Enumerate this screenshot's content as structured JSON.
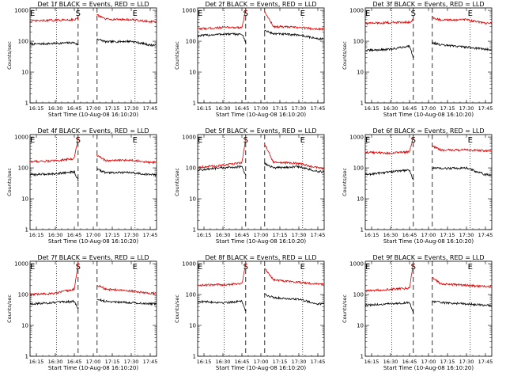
{
  "figure": {
    "background": "#ffffff",
    "event_color": "#000000",
    "lld_color": "#dd0000",
    "ylabel": "Counts/sec",
    "xlabel": "Start Time (10-Aug-08 16:10:20)",
    "x_ticks": [
      "16:15",
      "16:30",
      "16:45",
      "17:00",
      "17:15",
      "17:30",
      "17:45"
    ],
    "y_ticks": [
      "1",
      "10",
      "100",
      "1000"
    ],
    "markers": [
      "E",
      "S",
      "E"
    ]
  },
  "chart_data": [
    {
      "type": "line",
      "title": "Det 1f BLACK = Events, RED = LLD",
      "xlabel": "Start Time (10-Aug-08 16:10:20)",
      "ylabel": "Counts/sec",
      "y_scale": "log",
      "ylim": [
        1,
        1200
      ],
      "xlim": [
        "16:10",
        "17:50"
      ],
      "grid": false,
      "series": [
        {
          "name": "Events",
          "color": "#000000",
          "values": [
            [
              "16:10",
              80
            ],
            [
              "16:30",
              85
            ],
            [
              "16:45",
              90
            ],
            [
              "16:48",
              75
            ],
            [
              "17:03",
              120
            ],
            [
              "17:10",
              95
            ],
            [
              "17:30",
              100
            ],
            [
              "17:45",
              75
            ]
          ]
        },
        {
          "name": "LLD",
          "color": "#dd0000",
          "values": [
            [
              "16:10",
              450
            ],
            [
              "16:30",
              480
            ],
            [
              "16:45",
              500
            ],
            [
              "16:48",
              550
            ],
            [
              "17:03",
              700
            ],
            [
              "17:10",
              520
            ],
            [
              "17:30",
              500
            ],
            [
              "17:45",
              430
            ]
          ]
        }
      ]
    },
    {
      "type": "line",
      "title": "Det 2f BLACK = Events, RED = LLD",
      "xlabel": "Start Time (10-Aug-08 16:10:20)",
      "ylabel": "Counts/sec",
      "y_scale": "log",
      "ylim": [
        1,
        1200
      ],
      "xlim": [
        "16:10",
        "17:50"
      ],
      "grid": false,
      "series": [
        {
          "name": "Events",
          "color": "#000000",
          "values": [
            [
              "16:10",
              150
            ],
            [
              "16:30",
              170
            ],
            [
              "16:45",
              170
            ],
            [
              "16:48",
              90
            ],
            [
              "17:03",
              220
            ],
            [
              "17:10",
              175
            ],
            [
              "17:30",
              160
            ],
            [
              "17:45",
              120
            ]
          ]
        },
        {
          "name": "LLD",
          "color": "#dd0000",
          "values": [
            [
              "16:10",
              250
            ],
            [
              "16:30",
              280
            ],
            [
              "16:45",
              280
            ],
            [
              "16:48",
              1000
            ],
            [
              "17:03",
              900
            ],
            [
              "17:10",
              300
            ],
            [
              "17:30",
              280
            ],
            [
              "17:45",
              250
            ]
          ]
        }
      ]
    },
    {
      "type": "line",
      "title": "Det 3f BLACK = Events, RED = LLD",
      "xlabel": "Start Time (10-Aug-08 16:10:20)",
      "ylabel": "Counts/sec",
      "y_scale": "log",
      "ylim": [
        1,
        1200
      ],
      "xlim": [
        "16:10",
        "17:50"
      ],
      "grid": false,
      "series": [
        {
          "name": "Events",
          "color": "#000000",
          "values": [
            [
              "16:10",
              50
            ],
            [
              "16:30",
              55
            ],
            [
              "16:45",
              70
            ],
            [
              "16:48",
              30
            ],
            [
              "17:03",
              90
            ],
            [
              "17:10",
              75
            ],
            [
              "17:30",
              65
            ],
            [
              "17:45",
              55
            ]
          ]
        },
        {
          "name": "LLD",
          "color": "#dd0000",
          "values": [
            [
              "16:10",
              380
            ],
            [
              "16:30",
              400
            ],
            [
              "16:45",
              420
            ],
            [
              "16:48",
              500
            ],
            [
              "17:03",
              600
            ],
            [
              "17:10",
              480
            ],
            [
              "17:30",
              500
            ],
            [
              "17:45",
              380
            ]
          ]
        }
      ]
    },
    {
      "type": "line",
      "title": "Det 4f BLACK = Events, RED = LLD",
      "xlabel": "Start Time (10-Aug-08 16:10:20)",
      "ylabel": "Counts/sec",
      "y_scale": "log",
      "ylim": [
        1,
        1200
      ],
      "xlim": [
        "16:10",
        "17:50"
      ],
      "grid": false,
      "series": [
        {
          "name": "Events",
          "color": "#000000",
          "values": [
            [
              "16:10",
              60
            ],
            [
              "16:30",
              65
            ],
            [
              "16:45",
              75
            ],
            [
              "16:48",
              40
            ],
            [
              "17:03",
              90
            ],
            [
              "17:10",
              70
            ],
            [
              "17:30",
              70
            ],
            [
              "17:45",
              60
            ]
          ]
        },
        {
          "name": "LLD",
          "color": "#dd0000",
          "values": [
            [
              "16:10",
              160
            ],
            [
              "16:30",
              170
            ],
            [
              "16:45",
              200
            ],
            [
              "16:48",
              1000
            ],
            [
              "17:03",
              260
            ],
            [
              "17:10",
              170
            ],
            [
              "17:30",
              180
            ],
            [
              "17:45",
              150
            ]
          ]
        }
      ]
    },
    {
      "type": "line",
      "title": "Det 5f BLACK = Events, RED = LLD",
      "xlabel": "Start Time (10-Aug-08 16:10:20)",
      "ylabel": "Counts/sec",
      "y_scale": "log",
      "ylim": [
        1,
        1200
      ],
      "xlim": [
        "16:10",
        "17:50"
      ],
      "grid": false,
      "series": [
        {
          "name": "Events",
          "color": "#000000",
          "values": [
            [
              "16:10",
              85
            ],
            [
              "16:30",
              100
            ],
            [
              "16:45",
              110
            ],
            [
              "16:48",
              55
            ],
            [
              "17:03",
              140
            ],
            [
              "17:10",
              100
            ],
            [
              "17:30",
              110
            ],
            [
              "17:45",
              75
            ]
          ]
        },
        {
          "name": "LLD",
          "color": "#dd0000",
          "values": [
            [
              "16:10",
              105
            ],
            [
              "16:30",
              120
            ],
            [
              "16:45",
              150
            ],
            [
              "16:48",
              900
            ],
            [
              "17:03",
              600
            ],
            [
              "17:10",
              150
            ],
            [
              "17:30",
              140
            ],
            [
              "17:45",
              100
            ]
          ]
        }
      ]
    },
    {
      "type": "line",
      "title": "Det 6f BLACK = Events, RED = LLD",
      "xlabel": "Start Time (10-Aug-08 16:10:20)",
      "ylabel": "Counts/sec",
      "y_scale": "log",
      "ylim": [
        1,
        1200
      ],
      "xlim": [
        "16:10",
        "17:50"
      ],
      "grid": false,
      "series": [
        {
          "name": "Events",
          "color": "#000000",
          "values": [
            [
              "16:10",
              60
            ],
            [
              "16:30",
              75
            ],
            [
              "16:45",
              85
            ],
            [
              "16:48",
              40
            ],
            [
              "17:03",
              100
            ],
            [
              "17:10",
              95
            ],
            [
              "17:30",
              100
            ],
            [
              "17:45",
              60
            ]
          ]
        },
        {
          "name": "LLD",
          "color": "#dd0000",
          "values": [
            [
              "16:10",
              320
            ],
            [
              "16:30",
              300
            ],
            [
              "16:45",
              330
            ],
            [
              "16:48",
              1000
            ],
            [
              "17:03",
              500
            ],
            [
              "17:10",
              380
            ],
            [
              "17:30",
              380
            ],
            [
              "17:45",
              360
            ]
          ]
        }
      ]
    },
    {
      "type": "line",
      "title": "Det 7f BLACK = Events, RED = LLD",
      "xlabel": "Start Time (10-Aug-08 16:10:20)",
      "ylabel": "Counts/sec",
      "y_scale": "log",
      "ylim": [
        1,
        1200
      ],
      "xlim": [
        "16:10",
        "17:50"
      ],
      "grid": false,
      "series": [
        {
          "name": "Events",
          "color": "#000000",
          "values": [
            [
              "16:10",
              50
            ],
            [
              "16:30",
              55
            ],
            [
              "16:45",
              60
            ],
            [
              "16:48",
              35
            ],
            [
              "17:03",
              70
            ],
            [
              "17:10",
              60
            ],
            [
              "17:30",
              55
            ],
            [
              "17:45",
              50
            ]
          ]
        },
        {
          "name": "LLD",
          "color": "#dd0000",
          "values": [
            [
              "16:10",
              100
            ],
            [
              "16:30",
              110
            ],
            [
              "16:45",
              150
            ],
            [
              "16:48",
              1000
            ],
            [
              "17:03",
              200
            ],
            [
              "17:10",
              150
            ],
            [
              "17:30",
              130
            ],
            [
              "17:45",
              110
            ]
          ]
        }
      ]
    },
    {
      "type": "line",
      "title": "Det 8f BLACK = Events, RED = LLD",
      "xlabel": "Start Time (10-Aug-08 16:10:20)",
      "ylabel": "Counts/sec",
      "y_scale": "log",
      "ylim": [
        1,
        1200
      ],
      "xlim": [
        "16:10",
        "17:50"
      ],
      "grid": false,
      "series": [
        {
          "name": "Events",
          "color": "#000000",
          "values": [
            [
              "16:10",
              60
            ],
            [
              "16:30",
              55
            ],
            [
              "16:45",
              60
            ],
            [
              "16:48",
              30
            ],
            [
              "17:03",
              100
            ],
            [
              "17:10",
              80
            ],
            [
              "17:30",
              70
            ],
            [
              "17:45",
              50
            ]
          ]
        },
        {
          "name": "LLD",
          "color": "#dd0000",
          "values": [
            [
              "16:10",
              200
            ],
            [
              "16:30",
              210
            ],
            [
              "16:45",
              230
            ],
            [
              "16:48",
              1000
            ],
            [
              "17:03",
              700
            ],
            [
              "17:10",
              300
            ],
            [
              "17:30",
              250
            ],
            [
              "17:45",
              220
            ]
          ]
        }
      ]
    },
    {
      "type": "line",
      "title": "Det 9f BLACK = Events, RED = LLD",
      "xlabel": "Start Time (10-Aug-08 16:10:20)",
      "ylabel": "Counts/sec",
      "y_scale": "log",
      "ylim": [
        1,
        1200
      ],
      "xlim": [
        "16:10",
        "17:50"
      ],
      "grid": false,
      "series": [
        {
          "name": "Events",
          "color": "#000000",
          "values": [
            [
              "16:10",
              45
            ],
            [
              "16:30",
              50
            ],
            [
              "16:45",
              55
            ],
            [
              "16:48",
              25
            ],
            [
              "17:03",
              60
            ],
            [
              "17:10",
              55
            ],
            [
              "17:30",
              50
            ],
            [
              "17:45",
              45
            ]
          ]
        },
        {
          "name": "LLD",
          "color": "#dd0000",
          "values": [
            [
              "16:10",
              130
            ],
            [
              "16:30",
              150
            ],
            [
              "16:45",
              160
            ],
            [
              "16:48",
              1000
            ],
            [
              "17:03",
              350
            ],
            [
              "17:10",
              220
            ],
            [
              "17:30",
              200
            ],
            [
              "17:45",
              180
            ]
          ]
        }
      ]
    }
  ]
}
